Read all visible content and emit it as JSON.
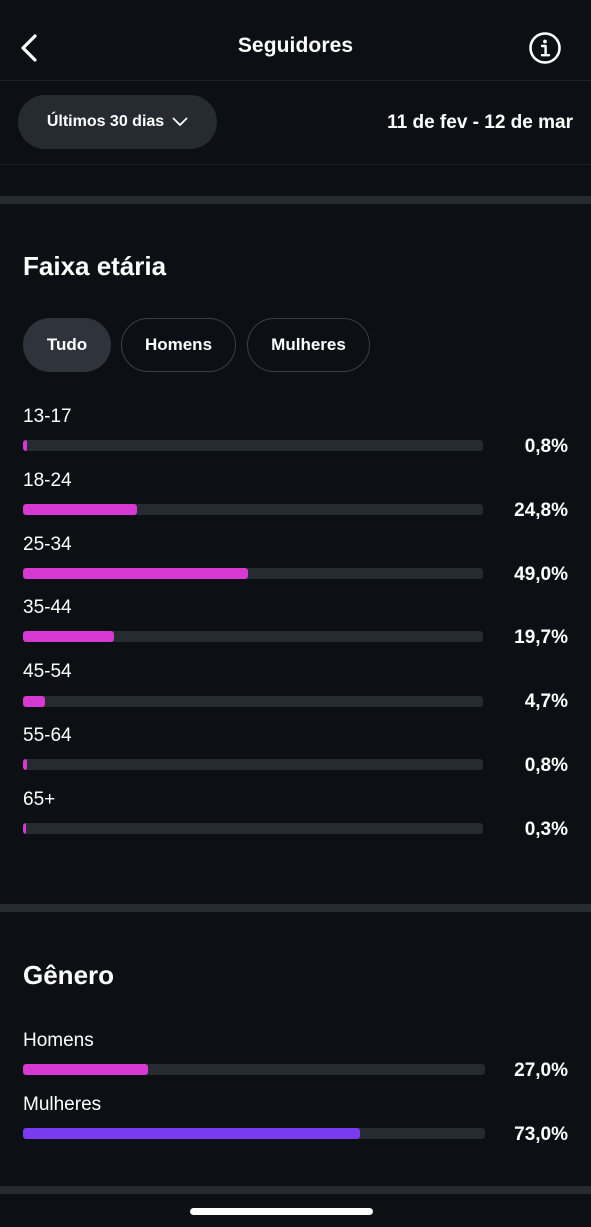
{
  "header": {
    "title": "Seguidores"
  },
  "filter": {
    "period_label": "Últimos 30 dias",
    "date_range": "11 de fev - 12 de mar"
  },
  "age": {
    "title": "Faixa etária",
    "segments": [
      "Tudo",
      "Homens",
      "Mulheres"
    ],
    "active_segment": "Tudo",
    "rows": [
      {
        "label": "13-17",
        "value_text": "0,8%",
        "value": 0.8
      },
      {
        "label": "18-24",
        "value_text": "24,8%",
        "value": 24.8
      },
      {
        "label": "25-34",
        "value_text": "49,0%",
        "value": 49.0
      },
      {
        "label": "35-44",
        "value_text": "19,7%",
        "value": 19.7
      },
      {
        "label": "45-54",
        "value_text": "4,7%",
        "value": 4.7
      },
      {
        "label": "55-64",
        "value_text": "0,8%",
        "value": 0.8
      },
      {
        "label": "65+",
        "value_text": "0,3%",
        "value": 0.3
      }
    ],
    "bar_color": "#d63ad3"
  },
  "gender": {
    "title": "Gênero",
    "rows": [
      {
        "label": "Homens",
        "value_text": "27,0%",
        "value": 27.0,
        "color": "#d63ad3"
      },
      {
        "label": "Mulheres",
        "value_text": "73,0%",
        "value": 73.0,
        "color": "#7a3bf0"
      }
    ]
  },
  "colors": {
    "background": "#0c0f14",
    "track": "#262a31",
    "pill": "#262a31"
  },
  "icons": {
    "back": "chevron-left-icon",
    "info": "info-circle-icon",
    "dropdown": "chevron-down-icon"
  }
}
